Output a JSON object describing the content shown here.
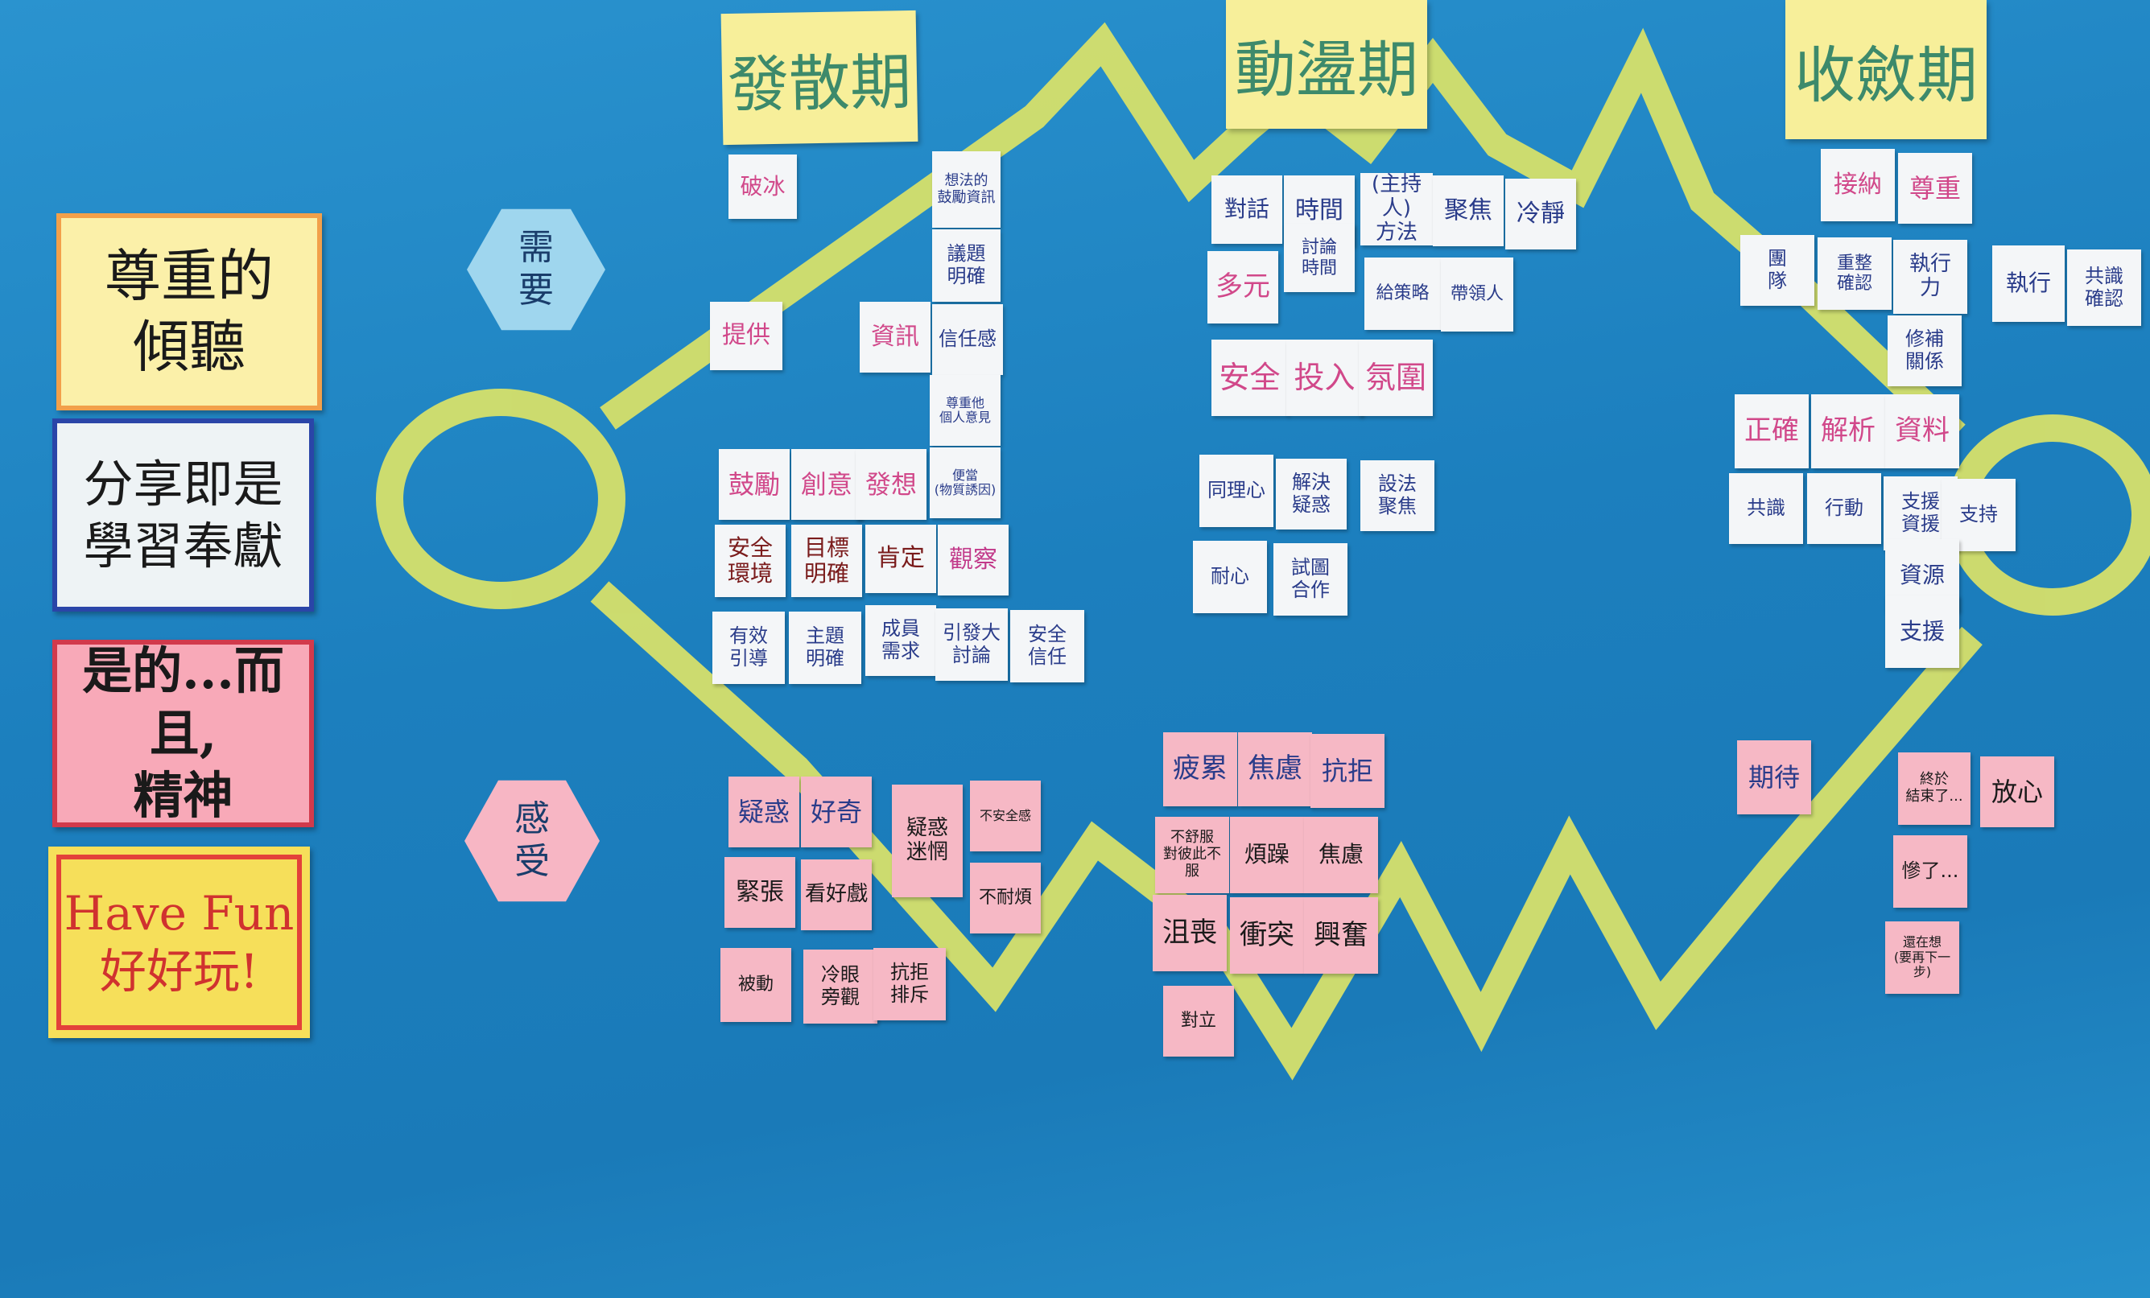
{
  "phases": [
    "發散期",
    "動盪期",
    "收斂期"
  ],
  "hexagons": {
    "need": "需\n要",
    "feel": "感\n受"
  },
  "left_posters": [
    {
      "text": "尊重的\n傾聽"
    },
    {
      "text": "分享即是\n學習奉獻"
    },
    {
      "text": "是的...而且,\n精神"
    },
    {
      "text": "Have Fun\n好好玩!"
    }
  ],
  "notes": {
    "n01": "破冰",
    "n02": "想法的\n鼓勵資訊",
    "n03": "議題\n明確",
    "n04": "提供",
    "n05": "資訊",
    "n06": "信任感",
    "n07": "尊重他\n個人意見",
    "n08": "鼓勵",
    "n09": "創意",
    "n10": "發想",
    "n11": "便當\n(物質誘因)",
    "n12": "安全\n環境",
    "n13": "目標\n明確",
    "n14": "肯定",
    "n15": "觀察",
    "n16": "有效\n引導",
    "n17": "主題\n明確",
    "n18": "成員\n需求",
    "n19": "引發大\n討論",
    "n20": "安全\n信任",
    "n21": "對話",
    "n22": "時間",
    "n23": "(主持人)\n方法",
    "n24": "聚焦",
    "n25": "冷靜",
    "n26": "多元",
    "n27": "討論\n時間",
    "n28": "給策略",
    "n29": "帶領人",
    "n30": "安全",
    "n31": "投入",
    "n32": "氛圍",
    "n33": "同理心",
    "n34": "解決\n疑惑",
    "n35": "設法\n聚焦",
    "n36": "耐心",
    "n37": "試圖\n合作",
    "n38": "接納",
    "n39": "尊重",
    "n40": "團\n隊",
    "n41": "重整\n確認",
    "n42": "執行\n力",
    "n43": "執行",
    "n44": "共識\n確認",
    "n45": "修補\n關係",
    "n46": "正確",
    "n47": "解析",
    "n48": "資料",
    "n49": "共識",
    "n50": "行動",
    "n51": "支援\n資援",
    "n52": "支持",
    "n53": "資源",
    "n54": "支援",
    "n55": "疑惑",
    "n56": "好奇",
    "n57": "疑惑\n迷惘",
    "n58": "不安全感",
    "n59": "緊張",
    "n60": "看好戲",
    "n61": "不耐煩",
    "n62": "被動",
    "n63": "冷眼\n旁觀",
    "n64": "抗拒\n排斥",
    "n65": "疲累",
    "n66": "焦慮",
    "n67": "抗拒",
    "n68": "不舒服\n對彼此不服",
    "n69": "煩躁",
    "n70": "焦慮",
    "n71": "沮喪",
    "n72": "衝突",
    "n73": "興奮",
    "n74": "對立",
    "n75": "期待",
    "n76": "終於\n結束了...",
    "n77": "放心",
    "n78": "慘了...",
    "n79": "還在想\n(要再下一步)"
  },
  "colors": {
    "board": "#1f86c4",
    "tape": "#d6e06a",
    "note_white": "#f4f6f8",
    "note_pink": "#f6b8c5",
    "note_yellow": "#f5ef9c"
  }
}
